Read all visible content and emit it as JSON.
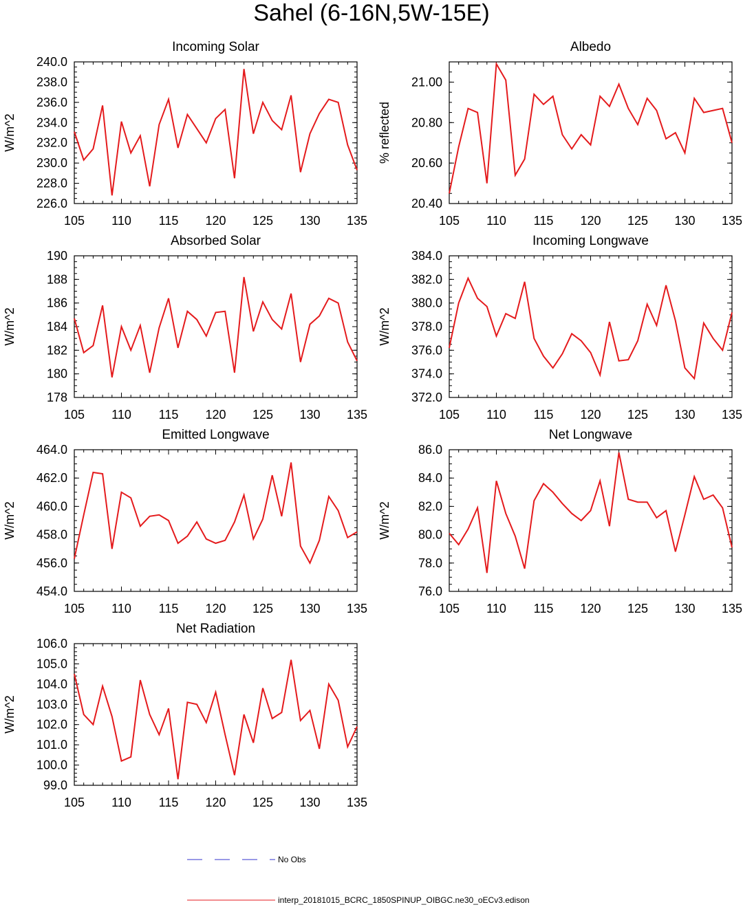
{
  "figure": {
    "title": "Sahel (6-16N,5W-15E)"
  },
  "legend": [
    {
      "label": "No Obs",
      "color": "#3333cc",
      "dashed": true
    },
    {
      "label": "interp_20181015_BCRC_1850SPINUP_OIBGC.ne30_oECv3.edison",
      "color": "#e41a1c",
      "dashed": false
    }
  ],
  "chart_data": [
    {
      "type": "line",
      "title": "Incoming Solar",
      "ylabel": "W/m^2",
      "xlabel": "",
      "xlim": [
        105,
        135
      ],
      "ylim": [
        226,
        240
      ],
      "xticks": [
        105,
        110,
        115,
        120,
        125,
        130,
        135
      ],
      "yticks": [
        "226.0",
        "228.0",
        "230.0",
        "232.0",
        "234.0",
        "236.0",
        "238.0",
        "240.0"
      ],
      "x": [
        105,
        106,
        107,
        108,
        109,
        110,
        111,
        112,
        113,
        114,
        115,
        116,
        117,
        118,
        119,
        120,
        121,
        122,
        123,
        124,
        125,
        126,
        127,
        128,
        129,
        130,
        131,
        132,
        133,
        134,
        135
      ],
      "series": [
        {
          "color": "#e41a1c",
          "values": [
            233.1,
            230.3,
            231.4,
            235.7,
            226.8,
            234.1,
            231.0,
            232.7,
            227.7,
            233.8,
            236.3,
            231.5,
            234.8,
            233.4,
            232.0,
            234.4,
            235.3,
            228.5,
            239.3,
            232.9,
            236.0,
            234.2,
            233.3,
            236.7,
            229.1,
            232.9,
            234.9,
            236.3,
            236.0,
            231.8,
            229.3
          ]
        }
      ]
    },
    {
      "type": "line",
      "title": "Albedo",
      "ylabel": "% reflected",
      "xlabel": "",
      "xlim": [
        105,
        135
      ],
      "ylim": [
        20.4,
        21.1
      ],
      "xticks": [
        105,
        110,
        115,
        120,
        125,
        130,
        135
      ],
      "yticks": [
        "20.40",
        "20.60",
        "20.80",
        "21.00"
      ],
      "x": [
        105,
        106,
        107,
        108,
        109,
        110,
        111,
        112,
        113,
        114,
        115,
        116,
        117,
        118,
        119,
        120,
        121,
        122,
        123,
        124,
        125,
        126,
        127,
        128,
        129,
        130,
        131,
        132,
        133,
        134,
        135
      ],
      "series": [
        {
          "color": "#e41a1c",
          "values": [
            20.45,
            20.68,
            20.87,
            20.85,
            20.5,
            21.09,
            21.01,
            20.54,
            20.62,
            20.94,
            20.89,
            20.93,
            20.74,
            20.67,
            20.74,
            20.69,
            20.93,
            20.88,
            20.99,
            20.87,
            20.79,
            20.92,
            20.86,
            20.72,
            20.75,
            20.65,
            20.92,
            20.85,
            20.86,
            20.87,
            20.7
          ]
        }
      ]
    },
    {
      "type": "line",
      "title": "Absorbed Solar",
      "ylabel": "W/m^2",
      "xlabel": "",
      "xlim": [
        105,
        135
      ],
      "ylim": [
        178,
        190
      ],
      "xticks": [
        105,
        110,
        115,
        120,
        125,
        130,
        135
      ],
      "yticks": [
        "178",
        "180",
        "182",
        "184",
        "186",
        "188",
        "190"
      ],
      "x": [
        105,
        106,
        107,
        108,
        109,
        110,
        111,
        112,
        113,
        114,
        115,
        116,
        117,
        118,
        119,
        120,
        121,
        122,
        123,
        124,
        125,
        126,
        127,
        128,
        129,
        130,
        131,
        132,
        133,
        134,
        135
      ],
      "series": [
        {
          "color": "#e41a1c",
          "values": [
            184.7,
            181.8,
            182.4,
            185.8,
            179.7,
            184.0,
            182.0,
            184.1,
            180.1,
            183.9,
            186.4,
            182.2,
            185.3,
            184.6,
            183.2,
            185.2,
            185.3,
            180.1,
            188.2,
            183.6,
            186.1,
            184.6,
            183.8,
            186.8,
            181.0,
            184.2,
            184.9,
            186.4,
            186.0,
            182.7,
            181.1
          ]
        }
      ]
    },
    {
      "type": "line",
      "title": "Incoming Longwave",
      "ylabel": "W/m^2",
      "xlabel": "",
      "xlim": [
        105,
        135
      ],
      "ylim": [
        372,
        384
      ],
      "xticks": [
        105,
        110,
        115,
        120,
        125,
        130,
        135
      ],
      "yticks": [
        "372.0",
        "374.0",
        "376.0",
        "378.0",
        "380.0",
        "382.0",
        "384.0"
      ],
      "x": [
        105,
        106,
        107,
        108,
        109,
        110,
        111,
        112,
        113,
        114,
        115,
        116,
        117,
        118,
        119,
        120,
        121,
        122,
        123,
        124,
        125,
        126,
        127,
        128,
        129,
        130,
        131,
        132,
        133,
        134,
        135
      ],
      "series": [
        {
          "color": "#e41a1c",
          "values": [
            376.2,
            380.0,
            382.1,
            380.4,
            379.7,
            377.2,
            379.1,
            378.7,
            381.8,
            377.0,
            375.5,
            374.5,
            375.7,
            377.4,
            376.8,
            375.8,
            373.9,
            378.4,
            375.1,
            375.2,
            376.8,
            379.9,
            378.1,
            381.5,
            378.5,
            374.5,
            373.6,
            378.3,
            377.0,
            376.0,
            379.2
          ]
        }
      ]
    },
    {
      "type": "line",
      "title": "Emitted Longwave",
      "ylabel": "W/m^2",
      "xlabel": "",
      "xlim": [
        105,
        135
      ],
      "ylim": [
        454,
        464
      ],
      "xticks": [
        105,
        110,
        115,
        120,
        125,
        130,
        135
      ],
      "yticks": [
        "454.0",
        "456.0",
        "458.0",
        "460.0",
        "462.0",
        "464.0"
      ],
      "x": [
        105,
        106,
        107,
        108,
        109,
        110,
        111,
        112,
        113,
        114,
        115,
        116,
        117,
        118,
        119,
        120,
        121,
        122,
        123,
        124,
        125,
        126,
        127,
        128,
        129,
        130,
        131,
        132,
        133,
        134,
        135
      ],
      "series": [
        {
          "color": "#e41a1c",
          "values": [
            456.3,
            459.4,
            462.4,
            462.3,
            457.0,
            461.0,
            460.6,
            458.6,
            459.3,
            459.4,
            459.0,
            457.4,
            457.9,
            458.9,
            457.7,
            457.4,
            457.6,
            458.9,
            460.8,
            457.7,
            459.1,
            462.2,
            459.3,
            463.1,
            457.2,
            456.0,
            457.6,
            460.7,
            459.7,
            457.8,
            458.2
          ]
        }
      ]
    },
    {
      "type": "line",
      "title": "Net Longwave",
      "ylabel": "W/m^2",
      "xlabel": "",
      "xlim": [
        105,
        135
      ],
      "ylim": [
        76,
        86
      ],
      "xticks": [
        105,
        110,
        115,
        120,
        125,
        130,
        135
      ],
      "yticks": [
        "76.0",
        "78.0",
        "80.0",
        "82.0",
        "84.0",
        "86.0"
      ],
      "x": [
        105,
        106,
        107,
        108,
        109,
        110,
        111,
        112,
        113,
        114,
        115,
        116,
        117,
        118,
        119,
        120,
        121,
        122,
        123,
        124,
        125,
        126,
        127,
        128,
        129,
        130,
        131,
        132,
        133,
        134,
        135
      ],
      "series": [
        {
          "color": "#e41a1c",
          "values": [
            80.1,
            79.3,
            80.4,
            81.9,
            77.3,
            83.8,
            81.5,
            79.9,
            77.6,
            82.4,
            83.6,
            83.0,
            82.2,
            81.5,
            81.0,
            81.7,
            83.8,
            80.6,
            85.8,
            82.5,
            82.3,
            82.3,
            81.2,
            81.7,
            78.8,
            81.4,
            84.1,
            82.5,
            82.8,
            81.9,
            79.1
          ]
        }
      ]
    },
    {
      "type": "line",
      "title": "Net Radiation",
      "ylabel": "W/m^2",
      "xlabel": "",
      "xlim": [
        105,
        135
      ],
      "ylim": [
        99,
        106
      ],
      "xticks": [
        105,
        110,
        115,
        120,
        125,
        130,
        135
      ],
      "yticks": [
        "99.0",
        "100.0",
        "101.0",
        "102.0",
        "103.0",
        "104.0",
        "105.0",
        "106.0"
      ],
      "x": [
        105,
        106,
        107,
        108,
        109,
        110,
        111,
        112,
        113,
        114,
        115,
        116,
        117,
        118,
        119,
        120,
        121,
        122,
        123,
        124,
        125,
        126,
        127,
        128,
        129,
        130,
        131,
        132,
        133,
        134,
        135
      ],
      "series": [
        {
          "color": "#e41a1c",
          "values": [
            104.5,
            102.5,
            102.0,
            103.9,
            102.4,
            100.2,
            100.4,
            104.2,
            102.5,
            101.5,
            102.8,
            99.3,
            103.1,
            103.0,
            102.1,
            103.6,
            101.5,
            99.5,
            102.5,
            101.1,
            103.8,
            102.3,
            102.6,
            105.2,
            102.2,
            102.7,
            100.8,
            104.0,
            103.2,
            100.9,
            101.9
          ]
        }
      ]
    }
  ]
}
